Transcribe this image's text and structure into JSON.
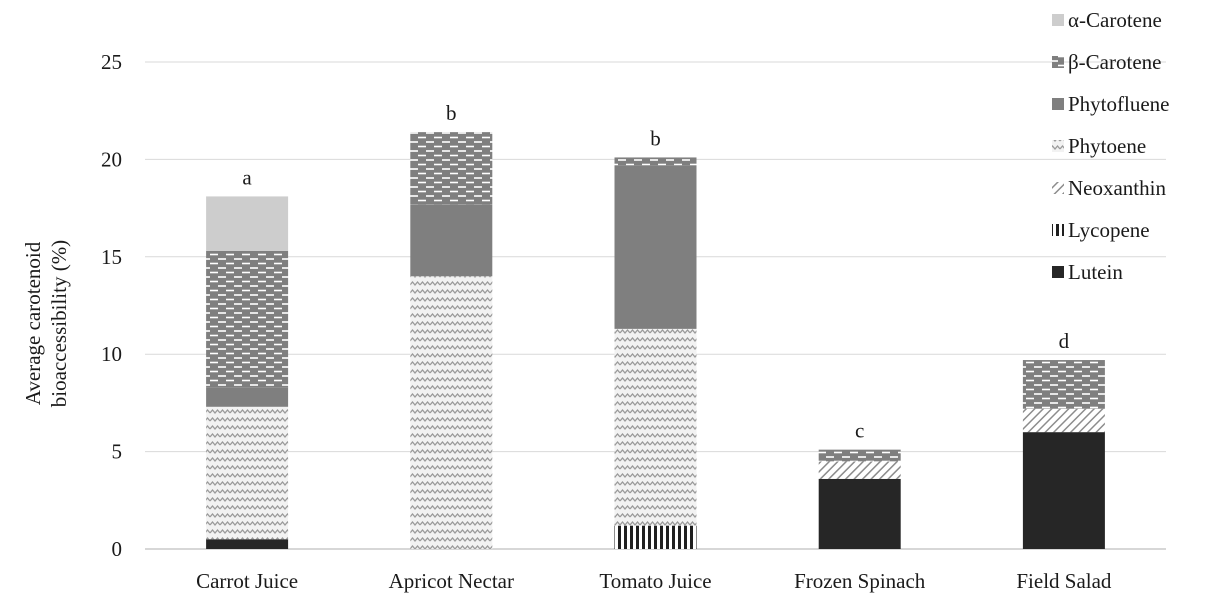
{
  "chart_data": {
    "type": "bar",
    "stacked": true,
    "title": "",
    "xlabel": "",
    "ylabel_lines": [
      "Average carotenoid",
      "bioaccessibility (%)"
    ],
    "ylim": [
      0,
      25
    ],
    "yticks": [
      0,
      5,
      10,
      15,
      20,
      25
    ],
    "grid": true,
    "legend_position": "right",
    "categories": [
      "Carrot Juice",
      "Apricot Nectar",
      "Tomato Juice",
      "Frozen Spinach",
      "Field Salad"
    ],
    "significance_letters": [
      "a",
      "b",
      "b",
      "c",
      "d"
    ],
    "series": [
      {
        "name": "Lutein",
        "pattern": "solid-dark",
        "color": "#262626",
        "values": [
          0.5,
          0,
          0,
          3.6,
          6.0
        ]
      },
      {
        "name": "Lycopene",
        "pattern": "vertical-lines",
        "color": "#262626",
        "values": [
          0,
          0,
          1.2,
          0,
          0
        ]
      },
      {
        "name": "Neoxanthin",
        "pattern": "diagonal-hatch",
        "color": "#8c8c8c",
        "values": [
          0,
          0,
          0,
          0.9,
          1.2
        ]
      },
      {
        "name": "Phytoene",
        "pattern": "zigzag",
        "color": "#a6a6a6",
        "values": [
          6.8,
          14.0,
          10.1,
          0,
          0
        ]
      },
      {
        "name": "Phytofluene",
        "pattern": "solid-gray",
        "color": "#7f7f7f",
        "values": [
          1.0,
          3.7,
          8.4,
          0,
          0
        ]
      },
      {
        "name": "β-Carotene",
        "pattern": "dashes",
        "color": "#7f7f7f",
        "values": [
          7.0,
          3.7,
          0.4,
          0.6,
          2.5
        ]
      },
      {
        "name": "α-Carotene",
        "pattern": "solid-light",
        "color": "#cdcdcd",
        "values": [
          2.8,
          0,
          0,
          0,
          0
        ]
      }
    ],
    "legend_order": [
      "α-Carotene",
      "β-Carotene",
      "Phytofluene",
      "Phytoene",
      "Neoxanthin",
      "Lycopene",
      "Lutein"
    ]
  }
}
